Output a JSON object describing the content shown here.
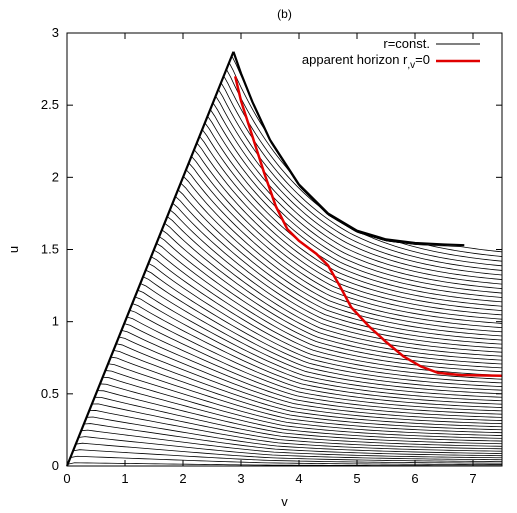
{
  "chart_data": {
    "type": "line",
    "title": "(b)",
    "xlabel": "v",
    "ylabel": "u",
    "xlim": [
      0,
      7.5
    ],
    "ylim": [
      0,
      3
    ],
    "xticks": [
      "0",
      "1",
      "2",
      "3",
      "4",
      "5",
      "6",
      "7"
    ],
    "yticks": [
      "0",
      "0.5",
      "1",
      "1.5",
      "2",
      "2.5",
      "3"
    ],
    "grid": false,
    "legend_position": "top-right",
    "legend": [
      {
        "label": "r=const.",
        "color": "#000000"
      },
      {
        "label": "apparent horizon r",
        "sub": ",v",
        "suffix": "=0",
        "color": "#e00000"
      }
    ],
    "apex": [
      2.87,
      2.87
    ],
    "singularity_boundary": {
      "color": "#000000",
      "points": [
        [
          2.87,
          2.87
        ],
        [
          3.0,
          2.72
        ],
        [
          3.2,
          2.52
        ],
        [
          3.5,
          2.26
        ],
        [
          4.0,
          1.95
        ],
        [
          4.5,
          1.75
        ],
        [
          5.0,
          1.63
        ],
        [
          5.5,
          1.57
        ],
        [
          6.0,
          1.545
        ],
        [
          6.5,
          1.535
        ],
        [
          6.85,
          1.53
        ]
      ]
    },
    "apparent_horizon": {
      "color": "#e00000",
      "points": [
        [
          2.9,
          2.7
        ],
        [
          3.0,
          2.53
        ],
        [
          3.2,
          2.28
        ],
        [
          3.4,
          2.03
        ],
        [
          3.6,
          1.8
        ],
        [
          3.8,
          1.64
        ],
        [
          4.0,
          1.56
        ],
        [
          4.3,
          1.47
        ],
        [
          4.5,
          1.39
        ],
        [
          4.7,
          1.25
        ],
        [
          4.9,
          1.1
        ],
        [
          5.2,
          0.97
        ],
        [
          5.5,
          0.86
        ],
        [
          5.8,
          0.76
        ],
        [
          6.1,
          0.69
        ],
        [
          6.4,
          0.645
        ],
        [
          6.8,
          0.63
        ],
        [
          7.5,
          0.625
        ]
      ]
    },
    "r_const_family": {
      "count": 62,
      "color": "#000000",
      "description_units": "u-intercept at v=7.5 ranges from ~1.5 (latest curve) down to 0 (earliest curve)"
    }
  }
}
